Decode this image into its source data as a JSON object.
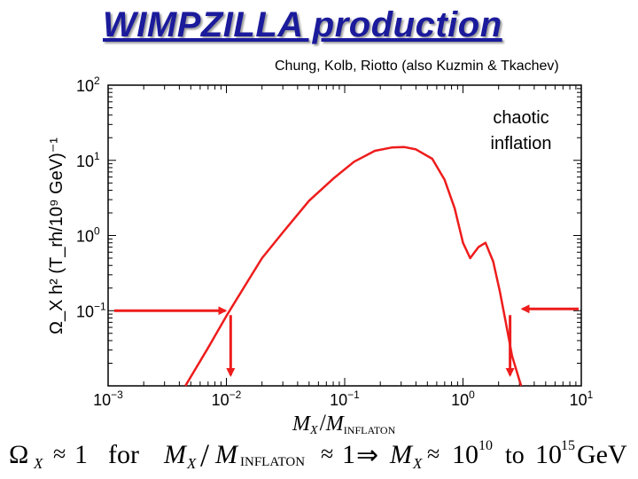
{
  "slide": {
    "title": "WIMPZILLA production",
    "credit": "Chung, Kolb, Riotto (also Kuzmin & Tkachev)"
  },
  "annotation": {
    "line1": "chaotic",
    "line2": "inflation"
  },
  "axes": {
    "xlabel_main": "M",
    "xlabel_sub1": "X",
    "xlabel_slash": "/",
    "xlabel_main2": "M",
    "xlabel_sub2": "INFLATON",
    "ylabel": "Ω_X h² (T_rh/10⁹ GeV)⁻¹",
    "x_ticks": [
      {
        "exp": -3,
        "label_base": "10",
        "label_exp": "−3"
      },
      {
        "exp": -2,
        "label_base": "10",
        "label_exp": "−2"
      },
      {
        "exp": -1,
        "label_base": "10",
        "label_exp": "−1"
      },
      {
        "exp": 0,
        "label_base": "10",
        "label_exp": "0"
      },
      {
        "exp": 1,
        "label_base": "10",
        "label_exp": "1"
      }
    ],
    "y_ticks": [
      {
        "exp": 2,
        "label_base": "10",
        "label_exp": "2"
      },
      {
        "exp": 1,
        "label_base": "10",
        "label_exp": "1"
      },
      {
        "exp": 0,
        "label_base": "10",
        "label_exp": "0"
      },
      {
        "exp": -1,
        "label_base": "10",
        "label_exp": "−1"
      }
    ]
  },
  "chart_data": {
    "type": "line",
    "title": "WIMPZILLA production",
    "xscale": "log",
    "yscale": "log",
    "xlim": [
      0.001,
      10
    ],
    "ylim": [
      0.01,
      100
    ],
    "xlabel": "M_X / M_INFLATON",
    "ylabel": "Ω_X h² (T_rh/10⁹ GeV)⁻¹",
    "series": [
      {
        "name": "Ω_X h²",
        "color": "#ee1c1c",
        "x": [
          0.0045,
          0.007,
          0.01,
          0.015,
          0.02,
          0.03,
          0.05,
          0.08,
          0.12,
          0.18,
          0.25,
          0.32,
          0.4,
          0.55,
          0.7,
          0.85,
          1.0,
          1.15,
          1.35,
          1.55,
          1.8,
          2.05,
          2.3,
          2.6,
          3.1
        ],
        "y": [
          0.01,
          0.032,
          0.085,
          0.24,
          0.5,
          1.1,
          2.9,
          5.7,
          9.6,
          13.4,
          14.8,
          15.0,
          14.0,
          10.5,
          5.5,
          2.3,
          0.8,
          0.5,
          0.7,
          0.8,
          0.45,
          0.18,
          0.07,
          0.025,
          0.008
        ]
      }
    ],
    "reference_lines": [
      {
        "name": "omega-equals-one-left",
        "x": 0.0105,
        "y": 0.1
      },
      {
        "name": "omega-equals-one-right",
        "x": 2.5,
        "y": 0.1
      }
    ],
    "annotation": "chaotic inflation"
  },
  "formula": {
    "omega": "Ω",
    "omega_sub": "X",
    "approx1": "≈",
    "one1": "1",
    "for_word": "for",
    "m1": "M",
    "m1_sub": "X",
    "slash": "/",
    "m2": "M",
    "m2_sub": "INFLATON",
    "approx2": "≈",
    "one2": "1",
    "implies": "⇒",
    "m3": "M",
    "m3_sub": "X",
    "approx3": "≈",
    "ten1": "10",
    "ten1_exp": "10",
    "to_word": "to",
    "ten2": "10",
    "ten2_exp": "15",
    "unit": "GeV"
  }
}
